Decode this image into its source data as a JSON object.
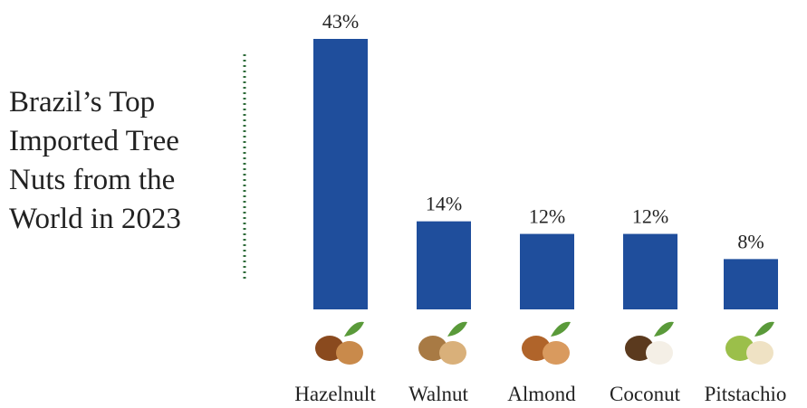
{
  "chart_data": {
    "type": "bar",
    "title": "Brazil’s Top Imported Tree Nuts from the World in 2023",
    "categories": [
      "Hazelnult",
      "Walnut",
      "Almond",
      "Coconut",
      "Pitstachio"
    ],
    "values": [
      43,
      14,
      12,
      12,
      8
    ],
    "value_labels": [
      "43%",
      "14%",
      "12%",
      "12%",
      "8%"
    ],
    "color": "#1f4e9c"
  }
}
